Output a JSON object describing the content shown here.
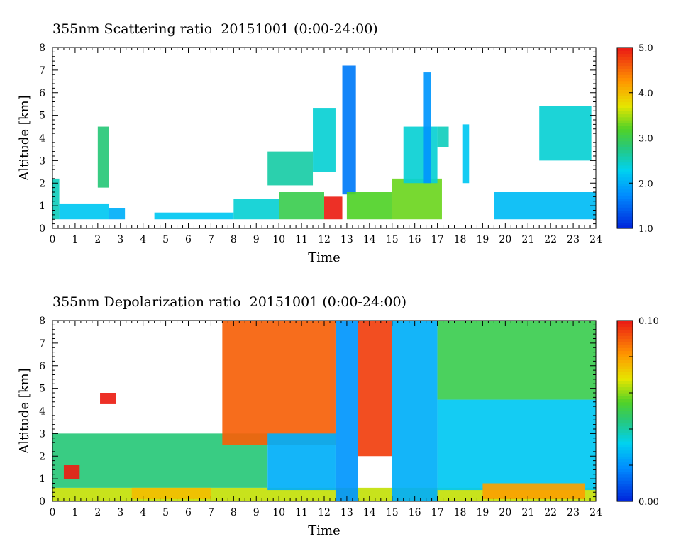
{
  "chart_data": [
    {
      "type": "heatmap",
      "title": "355nm Scattering ratio  20151001 (0:00-24:00)",
      "xlabel": "Time",
      "ylabel": "Altitude [km]",
      "xlim": [
        0,
        24
      ],
      "ylim": [
        0,
        8
      ],
      "x_ticks": [
        "0",
        "1",
        "2",
        "3",
        "4",
        "5",
        "6",
        "7",
        "8",
        "9",
        "10",
        "11",
        "12",
        "13",
        "14",
        "15",
        "16",
        "17",
        "18",
        "19",
        "20",
        "21",
        "22",
        "23",
        "24"
      ],
      "y_ticks": [
        "0",
        "1",
        "2",
        "3",
        "4",
        "5",
        "6",
        "7",
        "8"
      ],
      "colorbar": {
        "min": 1.0,
        "max": 5.0,
        "tick_values": [
          1.0,
          2.0,
          3.0,
          4.0,
          5.0
        ],
        "tick_labels": [
          "1.0",
          "2.0",
          "3.0",
          "4.0",
          "5.0"
        ]
      },
      "features": [
        {
          "x": [
            0.0,
            0.3
          ],
          "y": [
            0.4,
            2.2
          ],
          "value": 2.5
        },
        {
          "x": [
            0.3,
            2.5
          ],
          "y": [
            0.4,
            1.1
          ],
          "value": 2.2
        },
        {
          "x": [
            2.0,
            2.5
          ],
          "y": [
            1.8,
            4.5
          ],
          "value": 2.8
        },
        {
          "x": [
            2.5,
            3.2
          ],
          "y": [
            0.4,
            0.9
          ],
          "value": 2.0
        },
        {
          "x": [
            4.5,
            8.0
          ],
          "y": [
            0.4,
            0.7
          ],
          "value": 2.2
        },
        {
          "x": [
            8.0,
            10.0
          ],
          "y": [
            0.4,
            1.3
          ],
          "value": 2.4
        },
        {
          "x": [
            9.5,
            11.5
          ],
          "y": [
            1.9,
            3.4
          ],
          "value": 2.6
        },
        {
          "x": [
            10.0,
            12.0
          ],
          "y": [
            0.4,
            1.6
          ],
          "value": 3.0
        },
        {
          "x": [
            11.5,
            12.5
          ],
          "y": [
            2.5,
            5.3
          ],
          "value": 2.4
        },
        {
          "x": [
            12.0,
            12.8
          ],
          "y": [
            0.4,
            1.4
          ],
          "value": 5.0
        },
        {
          "x": [
            12.8,
            13.4
          ],
          "y": [
            1.5,
            7.2
          ],
          "value": 1.6
        },
        {
          "x": [
            13.0,
            15.0
          ],
          "y": [
            0.4,
            1.6
          ],
          "value": 3.2
        },
        {
          "x": [
            15.0,
            17.2
          ],
          "y": [
            0.4,
            2.2
          ],
          "value": 3.3
        },
        {
          "x": [
            15.5,
            17.0
          ],
          "y": [
            2.0,
            4.5
          ],
          "value": 2.4
        },
        {
          "x": [
            16.4,
            16.7
          ],
          "y": [
            2.0,
            6.9
          ],
          "value": 1.8
        },
        {
          "x": [
            17.0,
            17.5
          ],
          "y": [
            3.6,
            4.5
          ],
          "value": 2.5
        },
        {
          "x": [
            18.1,
            18.4
          ],
          "y": [
            2.0,
            4.6
          ],
          "value": 2.2
        },
        {
          "x": [
            19.5,
            24.0
          ],
          "y": [
            0.4,
            1.6
          ],
          "value": 2.1
        },
        {
          "x": [
            21.5,
            23.8
          ],
          "y": [
            3.0,
            5.4
          ],
          "value": 2.4
        }
      ]
    },
    {
      "type": "heatmap",
      "title": "355nm Depolarization ratio  20151001 (0:00-24:00)",
      "xlabel": "Time",
      "ylabel": "Altitude [km]",
      "xlim": [
        0,
        24
      ],
      "ylim": [
        0,
        8
      ],
      "x_ticks": [
        "0",
        "1",
        "2",
        "3",
        "4",
        "5",
        "6",
        "7",
        "8",
        "9",
        "10",
        "11",
        "12",
        "13",
        "14",
        "15",
        "16",
        "17",
        "18",
        "19",
        "20",
        "21",
        "22",
        "23",
        "24"
      ],
      "y_ticks": [
        "0",
        "1",
        "2",
        "3",
        "4",
        "5",
        "6",
        "7",
        "8"
      ],
      "colorbar": {
        "min": 0.0,
        "max": 0.1,
        "tick_values": [
          0.0,
          0.02,
          0.04,
          0.06,
          0.08,
          0.1
        ],
        "tick_labels": [
          "0.00",
          "",
          "",
          "",
          "",
          "0.10"
        ]
      },
      "features": [
        {
          "x": [
            0.0,
            24.0
          ],
          "y": [
            0.0,
            0.6
          ],
          "value": 0.065
        },
        {
          "x": [
            0.0,
            9.5
          ],
          "y": [
            0.6,
            3.0
          ],
          "value": 0.045
        },
        {
          "x": [
            0.5,
            1.2
          ],
          "y": [
            1.0,
            1.6
          ],
          "value": 0.1
        },
        {
          "x": [
            2.1,
            2.8
          ],
          "y": [
            4.3,
            4.8
          ],
          "value": 0.1
        },
        {
          "x": [
            3.5,
            7.0
          ],
          "y": [
            0.1,
            0.6
          ],
          "value": 0.075
        },
        {
          "x": [
            7.5,
            12.5
          ],
          "y": [
            2.5,
            8.0
          ],
          "value": 0.09
        },
        {
          "x": [
            9.5,
            12.5
          ],
          "y": [
            0.5,
            3.0
          ],
          "value": 0.025
        },
        {
          "x": [
            12.5,
            13.5
          ],
          "y": [
            0.0,
            8.0
          ],
          "value": 0.02
        },
        {
          "x": [
            13.5,
            15.0
          ],
          "y": [
            2.0,
            8.0
          ],
          "value": 0.095
        },
        {
          "x": [
            15.0,
            17.0
          ],
          "y": [
            0.0,
            8.0
          ],
          "value": 0.025
        },
        {
          "x": [
            17.0,
            24.0
          ],
          "y": [
            0.5,
            4.5
          ],
          "value": 0.03
        },
        {
          "x": [
            17.0,
            24.0
          ],
          "y": [
            4.5,
            8.0
          ],
          "value": 0.05
        },
        {
          "x": [
            19.0,
            23.5
          ],
          "y": [
            0.1,
            0.8
          ],
          "value": 0.08
        }
      ]
    }
  ]
}
